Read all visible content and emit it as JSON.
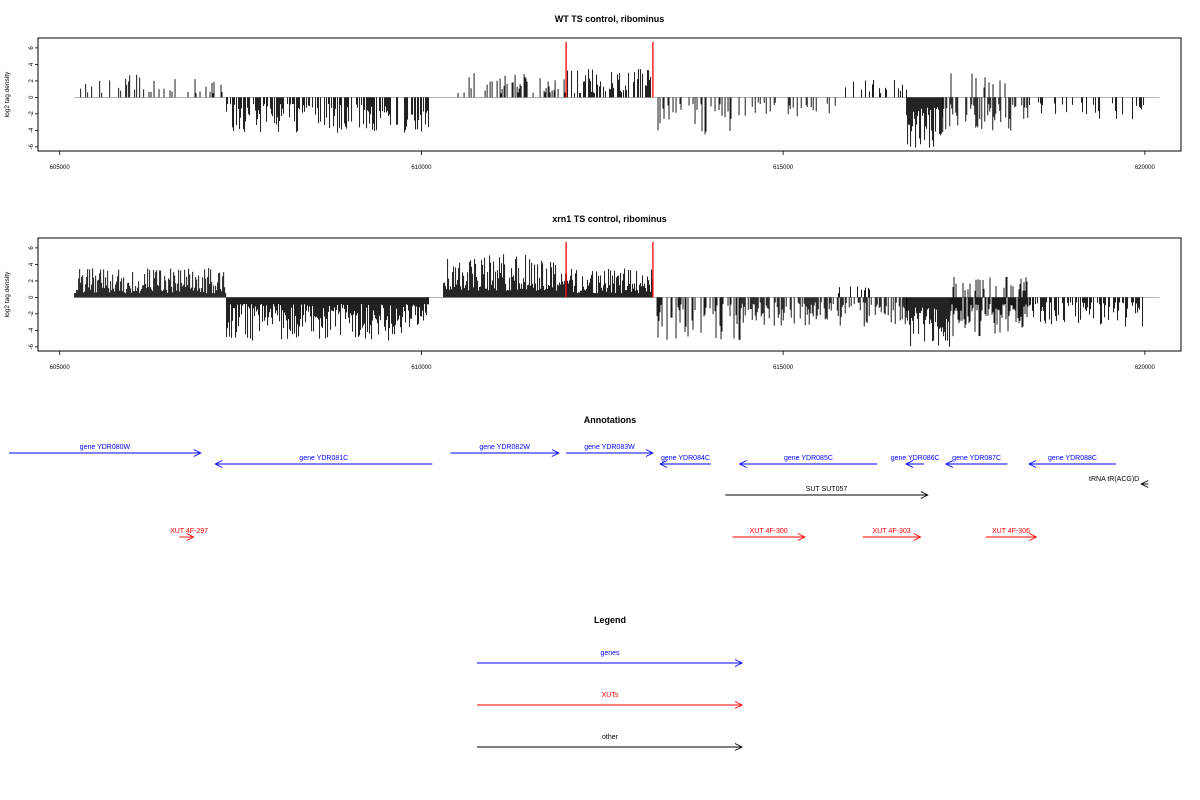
{
  "chart_data": [
    {
      "type": "bar",
      "title": "WT TS control, ribominus",
      "ylabel": "log2 tag density",
      "xlim": [
        604700,
        620500
      ],
      "ylim": [
        -6.5,
        7.2
      ],
      "x_ticks": [
        605000,
        610000,
        615000,
        620000
      ],
      "x_tick_labels": [
        "605000",
        "610000",
        "615000",
        "620000"
      ],
      "y_ticks": [
        6,
        4,
        2,
        0,
        -2,
        -4,
        -6
      ],
      "y_tick_labels": [
        "6",
        "4",
        "2",
        "0",
        "-2",
        "-4",
        "-6"
      ],
      "baseline_range": [
        605200,
        620200
      ],
      "colors": {
        "bars": "#000000",
        "markers": "#ff0000",
        "baseline": "#999999"
      },
      "red_markers": [
        612000,
        613200
      ],
      "segments": [
        {
          "range": [
            605200,
            606200
          ],
          "density": 0.3,
          "min": 0.5,
          "max": 2.8
        },
        {
          "range": [
            606200,
            607300
          ],
          "density": 0.3,
          "min": 0.5,
          "max": 2.6
        },
        {
          "range": [
            607300,
            610100
          ],
          "density": 0.55,
          "min": -4.3,
          "max": -0.8
        },
        {
          "range": [
            610500,
            612000
          ],
          "density": 0.4,
          "min": 0.5,
          "max": 3.0
        },
        {
          "range": [
            612000,
            613200
          ],
          "density": 0.55,
          "min": 0.5,
          "max": 3.6
        },
        {
          "range": [
            613250,
            614400
          ],
          "density": 0.4,
          "min": -4.5,
          "max": -0.8
        },
        {
          "range": [
            614400,
            615800
          ],
          "density": 0.22,
          "min": -2.4,
          "max": -0.6
        },
        {
          "range": [
            615800,
            616700
          ],
          "density": 0.18,
          "min": 0.5,
          "max": 2.2
        },
        {
          "range": [
            616700,
            617200
          ],
          "density": 1.0,
          "min": -6.1,
          "max": -1.2
        },
        {
          "range": [
            617200,
            618400
          ],
          "density": 0.55,
          "min": -4.6,
          "max": -0.8
        },
        {
          "range": [
            617300,
            618100
          ],
          "density": 0.12,
          "min": 1.2,
          "max": 3.2
        },
        {
          "range": [
            618400,
            620000
          ],
          "density": 0.22,
          "min": -2.8,
          "max": -0.6
        }
      ]
    },
    {
      "type": "bar",
      "title": "xrn1 TS control, ribominus",
      "ylabel": "log2 tag density",
      "xlim": [
        604700,
        620500
      ],
      "ylim": [
        -6.5,
        7.2
      ],
      "x_ticks": [
        605000,
        610000,
        615000,
        620000
      ],
      "x_tick_labels": [
        "605000",
        "610000",
        "615000",
        "620000"
      ],
      "y_ticks": [
        6,
        4,
        2,
        0,
        -2,
        -4,
        -6
      ],
      "y_tick_labels": [
        "6",
        "4",
        "2",
        "0",
        "-2",
        "-4",
        "-6"
      ],
      "baseline_range": [
        605200,
        620200
      ],
      "colors": {
        "bars": "#000000",
        "markers": "#ff0000",
        "baseline": "#999999"
      },
      "red_markers": [
        612000,
        613200
      ],
      "segments": [
        {
          "range": [
            605200,
            607300
          ],
          "density": 1.0,
          "min": 0.5,
          "max": 3.6
        },
        {
          "range": [
            607300,
            610100
          ],
          "density": 1.3,
          "min": -5.3,
          "max": -0.8
        },
        {
          "range": [
            610300,
            612000
          ],
          "density": 1.2,
          "min": 0.8,
          "max": 5.3
        },
        {
          "range": [
            612000,
            613200
          ],
          "density": 1.2,
          "min": 0.5,
          "max": 3.6
        },
        {
          "range": [
            613250,
            614400
          ],
          "density": 0.5,
          "min": -5.5,
          "max": -0.8
        },
        {
          "range": [
            614400,
            616700
          ],
          "density": 0.7,
          "min": -3.6,
          "max": -0.6
        },
        {
          "range": [
            615400,
            616200
          ],
          "density": 0.1,
          "min": 0.5,
          "max": 1.5
        },
        {
          "range": [
            616700,
            617300
          ],
          "density": 1.4,
          "min": -6.0,
          "max": -1.2
        },
        {
          "range": [
            617300,
            618400
          ],
          "density": 0.9,
          "min": -4.8,
          "max": -0.8
        },
        {
          "range": [
            617300,
            618400
          ],
          "density": 0.35,
          "min": 0.8,
          "max": 2.5
        },
        {
          "range": [
            618400,
            620000
          ],
          "density": 0.55,
          "min": -3.6,
          "max": -0.6
        }
      ]
    }
  ],
  "annotations": {
    "title": "Annotations",
    "features": [
      {
        "label": "gene YDR080W",
        "start": 604300,
        "end": 606950,
        "strand": "+",
        "type": "gene",
        "row": 0
      },
      {
        "label": "gene YDR081C",
        "start": 607150,
        "end": 610150,
        "strand": "-",
        "type": "gene",
        "row": 1
      },
      {
        "label": "gene YDR082W",
        "start": 610400,
        "end": 611900,
        "strand": "+",
        "type": "gene",
        "row": 0
      },
      {
        "label": "gene YDR083W",
        "start": 612000,
        "end": 613200,
        "strand": "+",
        "type": "gene",
        "row": 0
      },
      {
        "label": "gene YDR084C",
        "start": 613300,
        "end": 614000,
        "strand": "-",
        "type": "gene",
        "row": 1
      },
      {
        "label": "gene YDR085C",
        "start": 614400,
        "end": 616300,
        "strand": "-",
        "type": "gene",
        "row": 1
      },
      {
        "label": "gene YDR086C",
        "start": 616700,
        "end": 616950,
        "strand": "-",
        "type": "gene",
        "row": 1
      },
      {
        "label": "gene YDR087C",
        "start": 617250,
        "end": 618100,
        "strand": "-",
        "type": "gene",
        "row": 1
      },
      {
        "label": "gene YDR088C",
        "start": 618400,
        "end": 619600,
        "strand": "-",
        "type": "gene",
        "row": 1
      },
      {
        "label": "tRNA tR(ACG)D",
        "start": 619950,
        "end": 620050,
        "strand": "-",
        "type": "other",
        "row": 2
      },
      {
        "label": "SUT SUT057",
        "start": 614200,
        "end": 617000,
        "strand": "+",
        "type": "other",
        "row": 3
      },
      {
        "label": "XUT 4F-297",
        "start": 606650,
        "end": 606850,
        "strand": "+",
        "type": "xut",
        "row": 4
      },
      {
        "label": "XUT 4F-300",
        "start": 614300,
        "end": 615300,
        "strand": "+",
        "type": "xut",
        "row": 4
      },
      {
        "label": "XUT 4F-303",
        "start": 616100,
        "end": 616900,
        "strand": "+",
        "type": "xut",
        "row": 4
      },
      {
        "label": "XUT 4F-306",
        "start": 617800,
        "end": 618500,
        "strand": "+",
        "type": "xut",
        "row": 4
      }
    ]
  },
  "legend": {
    "title": "Legend",
    "items": [
      {
        "label": "genes",
        "type": "gene"
      },
      {
        "label": "XUTs",
        "type": "xut"
      },
      {
        "label": "other",
        "type": "other"
      }
    ]
  },
  "colors": {
    "gene": "#0000ff",
    "xut": "#ff0000",
    "other": "#000000"
  }
}
